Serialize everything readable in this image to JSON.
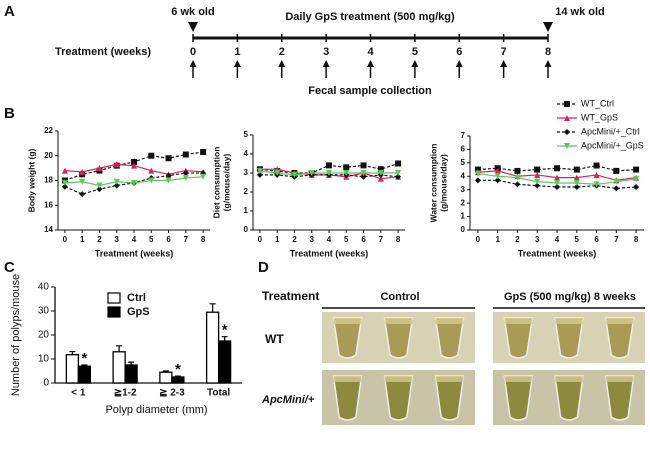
{
  "panel_labels": [
    "A",
    "B",
    "C",
    "D"
  ],
  "timeline": {
    "start_label": "6 wk old",
    "title": "Daily GpS treatment (500 mg/kg)",
    "end_label": "14 wk old",
    "axis_label": "Treatment (weeks)",
    "weeks": [
      0,
      1,
      2,
      3,
      4,
      5,
      6,
      7,
      8
    ],
    "footer": "Fecal sample collection"
  },
  "chart_data": [
    {
      "type": "line",
      "ylabel": [
        "Body weight (g)"
      ],
      "xlabel": "Treatment (weeks)",
      "x": [
        0,
        1,
        2,
        3,
        4,
        5,
        6,
        7,
        8
      ],
      "xlim": [
        -0.4,
        8.4
      ],
      "xticks": [
        0,
        1,
        2,
        3,
        4,
        5,
        6,
        7,
        8
      ],
      "ylim": [
        14,
        22
      ],
      "yticks": [
        14,
        16,
        18,
        20,
        22
      ],
      "series": [
        {
          "name": "WT_Ctrl",
          "color": "#111111",
          "marker": "square",
          "dashed": true,
          "values": [
            18.0,
            18.5,
            18.8,
            19.2,
            19.5,
            20.0,
            19.8,
            20.1,
            20.3
          ]
        },
        {
          "name": "WT_GpS",
          "color": "#d6245a",
          "marker": "triangle",
          "dashed": false,
          "values": [
            18.8,
            18.7,
            19.0,
            19.3,
            19.2,
            18.8,
            18.5,
            18.8,
            18.7
          ]
        },
        {
          "name": "ApcMini/+_Ctrl",
          "color": "#111111",
          "marker": "diamond",
          "dashed": true,
          "values": [
            17.5,
            16.9,
            17.3,
            17.6,
            17.8,
            18.2,
            18.4,
            18.6,
            18.6
          ]
        },
        {
          "name": "ApcMini/+_GpS",
          "color": "#5cc85c",
          "marker": "invtriangle",
          "dashed": false,
          "values": [
            17.8,
            17.9,
            17.6,
            17.9,
            17.8,
            18.0,
            18.0,
            18.2,
            18.3
          ]
        }
      ]
    },
    {
      "type": "line",
      "ylabel": [
        "Diet consumption",
        "(g/mouse/day)"
      ],
      "xlabel": "Treatment (weeks)",
      "x": [
        0,
        1,
        2,
        3,
        4,
        5,
        6,
        7,
        8
      ],
      "xlim": [
        -0.4,
        8.4
      ],
      "xticks": [
        0,
        1,
        2,
        3,
        4,
        5,
        6,
        7,
        8
      ],
      "ylim": [
        0,
        5
      ],
      "yticks": [
        0,
        1,
        2,
        3,
        4,
        5
      ],
      "series": [
        {
          "color": "#111111",
          "marker": "square",
          "dashed": true,
          "values": [
            3.2,
            3.1,
            3.0,
            3.0,
            3.4,
            3.3,
            3.4,
            3.2,
            3.5
          ]
        },
        {
          "color": "#d6245a",
          "marker": "triangle",
          "dashed": false,
          "values": [
            3.2,
            3.2,
            3.0,
            2.9,
            2.9,
            2.8,
            3.0,
            2.7,
            2.8
          ]
        },
        {
          "color": "#111111",
          "marker": "diamond",
          "dashed": true,
          "values": [
            2.9,
            2.9,
            2.8,
            2.9,
            2.9,
            2.9,
            2.8,
            2.9,
            2.8
          ]
        },
        {
          "color": "#5cc85c",
          "marker": "invtriangle",
          "dashed": false,
          "values": [
            3.1,
            3.0,
            2.9,
            3.0,
            3.0,
            3.0,
            3.0,
            3.0,
            3.0
          ]
        }
      ]
    },
    {
      "type": "line",
      "ylabel": [
        "Water consumption",
        "(g/mouse/day)"
      ],
      "xlabel": "Treatment (weeks)",
      "x": [
        0,
        1,
        2,
        3,
        4,
        5,
        6,
        7,
        8
      ],
      "xlim": [
        -0.4,
        8.4
      ],
      "xticks": [
        0,
        1,
        2,
        3,
        4,
        5,
        6,
        7,
        8
      ],
      "ylim": [
        0,
        7
      ],
      "yticks": [
        0,
        1,
        2,
        3,
        4,
        5,
        6,
        7
      ],
      "series": [
        {
          "color": "#111111",
          "marker": "square",
          "dashed": true,
          "values": [
            4.5,
            4.6,
            4.4,
            4.5,
            4.6,
            4.5,
            4.8,
            4.4,
            4.5
          ]
        },
        {
          "color": "#d6245a",
          "marker": "triangle",
          "dashed": false,
          "values": [
            4.3,
            4.4,
            4.0,
            4.1,
            3.9,
            3.9,
            4.1,
            3.7,
            3.9
          ]
        },
        {
          "color": "#111111",
          "marker": "diamond",
          "dashed": true,
          "values": [
            3.7,
            3.7,
            3.4,
            3.3,
            3.2,
            3.2,
            3.3,
            3.1,
            3.2
          ]
        },
        {
          "color": "#5cc85c",
          "marker": "invtriangle",
          "dashed": false,
          "values": [
            4.2,
            4.0,
            3.9,
            3.6,
            3.5,
            3.5,
            3.4,
            3.6,
            3.8
          ]
        }
      ]
    },
    {
      "type": "bar",
      "ylabel": "Number of polyps/mouse",
      "xlabel": "Polyp diameter (mm)",
      "categories": [
        "< 1",
        "≧1-2",
        "≧ 2-3",
        "Total"
      ],
      "ylim": [
        0,
        40
      ],
      "yticks": [
        0,
        10,
        20,
        30,
        40
      ],
      "significance": [
        "*",
        null,
        "*",
        "*"
      ],
      "series": [
        {
          "name": "Ctrl",
          "color": "#ffffff",
          "values": [
            11.8,
            13,
            4.5,
            29.5
          ],
          "errors": [
            1.3,
            2.5,
            0.5,
            3.5
          ]
        },
        {
          "name": "GpS",
          "color": "#000000",
          "values": [
            7,
            7.5,
            2.5,
            17.5
          ],
          "errors": [
            0.5,
            1.2,
            0.4,
            1.8
          ]
        }
      ]
    }
  ],
  "photos": {
    "header": "Treatment",
    "groups": [
      "Control",
      "GpS (500 mg/kg) 8 weeks"
    ],
    "rows": [
      "WT",
      "ApcMini/+"
    ]
  }
}
